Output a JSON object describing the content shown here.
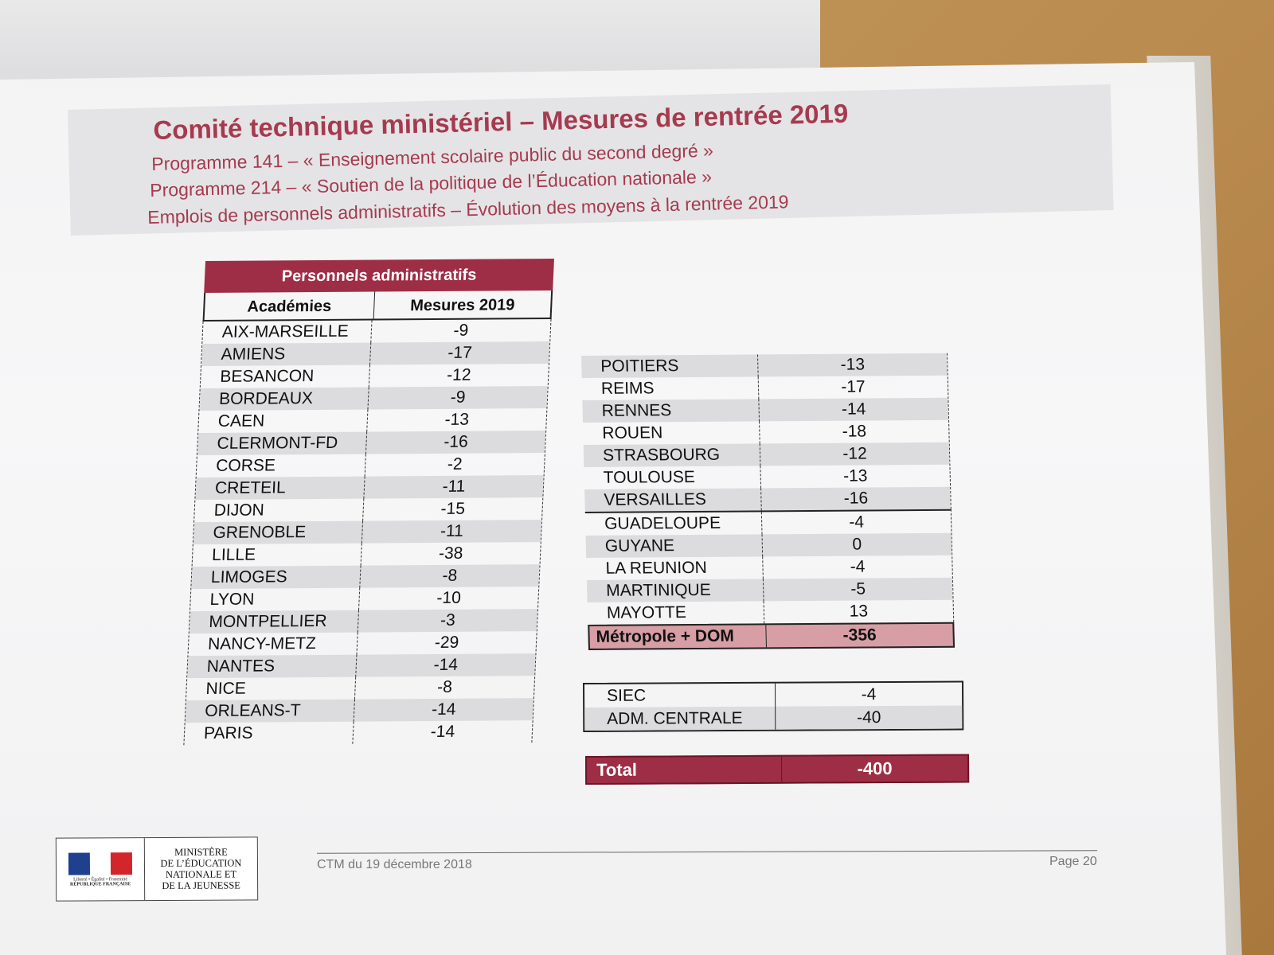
{
  "header": {
    "title": "Comité technique ministériel – Mesures de rentrée 2019",
    "subtitles": [
      "Programme 141 – « Enseignement scolaire public du second degré »",
      "Programme 214 – « Soutien de la politique de l’Éducation nationale »",
      "Emplois de personnels administratifs – Évolution des moyens à la rentrée 2019"
    ]
  },
  "table": {
    "title": "Personnels administratifs",
    "col_academies": "Académies",
    "col_mesures": "Mesures 2019",
    "left_rows": [
      {
        "name": "AIX-MARSEILLE",
        "value": "-9"
      },
      {
        "name": "AMIENS",
        "value": "-17"
      },
      {
        "name": "BESANCON",
        "value": "-12"
      },
      {
        "name": "BORDEAUX",
        "value": "-9"
      },
      {
        "name": "CAEN",
        "value": "-13"
      },
      {
        "name": "CLERMONT-FD",
        "value": "-16"
      },
      {
        "name": "CORSE",
        "value": "-2"
      },
      {
        "name": "CRETEIL",
        "value": "-11"
      },
      {
        "name": "DIJON",
        "value": "-15"
      },
      {
        "name": "GRENOBLE",
        "value": "-11"
      },
      {
        "name": "LILLE",
        "value": "-38"
      },
      {
        "name": "LIMOGES",
        "value": "-8"
      },
      {
        "name": "LYON",
        "value": "-10"
      },
      {
        "name": "MONTPELLIER",
        "value": "-3"
      },
      {
        "name": "NANCY-METZ",
        "value": "-29"
      },
      {
        "name": "NANTES",
        "value": "-14"
      },
      {
        "name": "NICE",
        "value": "-8"
      },
      {
        "name": "ORLEANS-T",
        "value": "-14"
      },
      {
        "name": "PARIS",
        "value": "-14"
      }
    ],
    "right_rows": [
      {
        "name": "POITIERS",
        "value": "-13"
      },
      {
        "name": "REIMS",
        "value": "-17"
      },
      {
        "name": "RENNES",
        "value": "-14"
      },
      {
        "name": "ROUEN",
        "value": "-18"
      },
      {
        "name": "STRASBOURG",
        "value": "-12"
      },
      {
        "name": "TOULOUSE",
        "value": "-13"
      },
      {
        "name": "VERSAILLES",
        "value": "-16"
      }
    ],
    "dom_rows": [
      {
        "name": "GUADELOUPE",
        "value": "-4"
      },
      {
        "name": "GUYANE",
        "value": "0"
      },
      {
        "name": "LA REUNION",
        "value": "-4"
      },
      {
        "name": "MARTINIQUE",
        "value": "-5"
      },
      {
        "name": "MAYOTTE",
        "value": "13"
      }
    ],
    "subtotal": {
      "name": "Métropole + DOM",
      "value": "-356"
    },
    "other_rows": [
      {
        "name": "SIEC",
        "value": "-4"
      },
      {
        "name": "ADM. CENTRALE",
        "value": "-40"
      }
    ],
    "total": {
      "name": "Total",
      "value": "-400"
    }
  },
  "footer": {
    "date": "CTM du 19 décembre 2018",
    "page": "Page 20",
    "ministry_lines": [
      "MINISTÈRE",
      "DE L’ÉDUCATION",
      "NATIONALE ET",
      "DE LA JEUNESSE"
    ],
    "motto": "Liberté • Égalité • Fraternité",
    "republic": "RÉPUBLIQUE FRANÇAISE"
  },
  "colors": {
    "accent": "#9e2e45",
    "title": "#a63a4f",
    "subtotal_fill": "#d79ea6",
    "row_alt": "#dcdcde"
  }
}
